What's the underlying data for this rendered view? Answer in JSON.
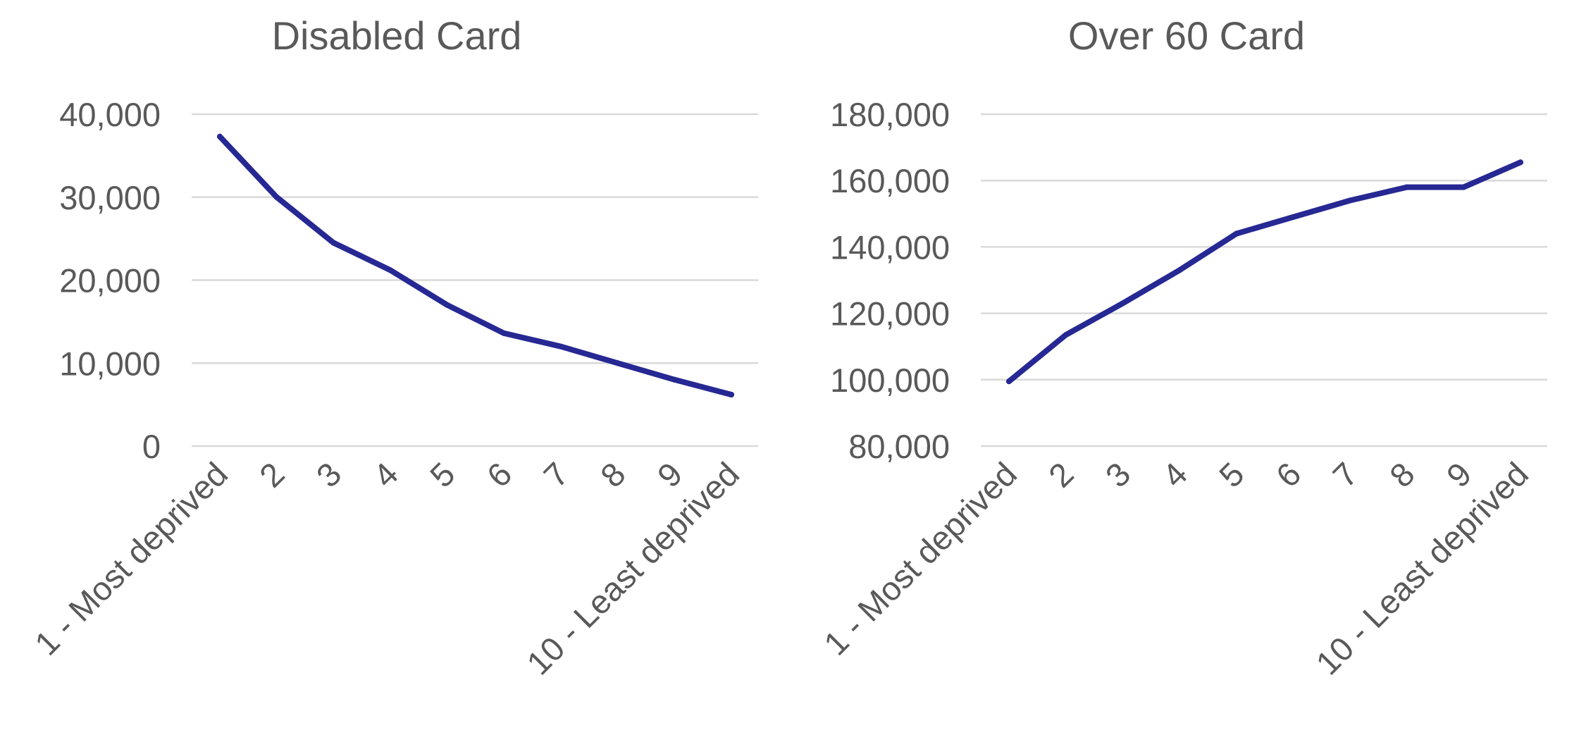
{
  "chart_data": [
    {
      "type": "line",
      "title": "Disabled Card",
      "xlabel": "",
      "ylabel": "",
      "categories": [
        "1 - Most deprived",
        "2",
        "3",
        "4",
        "5",
        "6",
        "7",
        "8",
        "9",
        "10 - Least deprived"
      ],
      "ylim": [
        0,
        40000
      ],
      "yticks": [
        "0",
        "10,000",
        "20,000",
        "30,000",
        "40,000"
      ],
      "grid": true,
      "legend": "none",
      "series": [
        {
          "values": [
            37300,
            30000,
            24500,
            21200,
            17000,
            13600,
            12000,
            10000,
            8000,
            6200
          ],
          "color": "#262893"
        }
      ]
    },
    {
      "type": "line",
      "title": "Over 60 Card",
      "xlabel": "",
      "ylabel": "",
      "categories": [
        "1 - Most deprived",
        "2",
        "3",
        "4",
        "5",
        "6",
        "7",
        "8",
        "9",
        "10 - Least deprived"
      ],
      "ylim": [
        80000,
        180000
      ],
      "yticks": [
        "80,000",
        "100,000",
        "120,000",
        "140,000",
        "160,000",
        "180,000"
      ],
      "grid": true,
      "legend": "none",
      "series": [
        {
          "values": [
            99500,
            113500,
            123000,
            133000,
            144000,
            149000,
            154000,
            158000,
            158000,
            165500
          ],
          "color": "#262893"
        }
      ]
    }
  ]
}
